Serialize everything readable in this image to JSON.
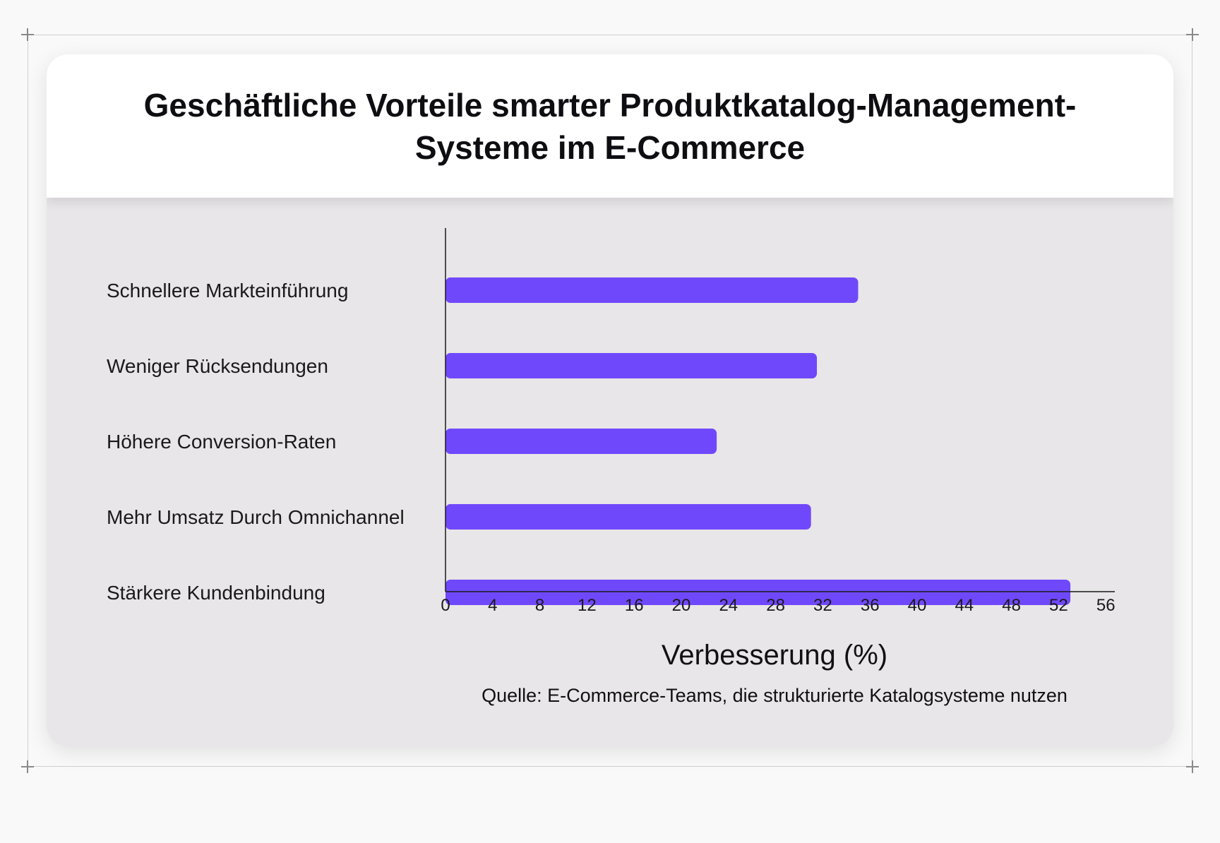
{
  "chart_data": {
    "type": "bar",
    "orientation": "horizontal",
    "title": "Geschäftliche Vorteile smarter Produktkatalog-Management-Systeme im E-Commerce",
    "categories": [
      "Schnellere Markteinführung",
      "Weniger Rücksendungen",
      "Höhere Conversion-Raten",
      "Mehr Umsatz Durch Omnichannel",
      "Stärkere Kundenbindung"
    ],
    "values": [
      35,
      31.5,
      23,
      31,
      53
    ],
    "xlabel": "Verbesserung (%)",
    "xlim": [
      0,
      60
    ],
    "xticks": [
      "0",
      "4",
      "8",
      "12",
      "16",
      "20",
      "24",
      "28",
      "32",
      "36",
      "40",
      "44",
      "48",
      "52",
      "56"
    ],
    "source": "Quelle: E-Commerce-Teams, die strukturierte Katalogsysteme nutzen",
    "bar_color": "#7048fc",
    "grid": false
  }
}
